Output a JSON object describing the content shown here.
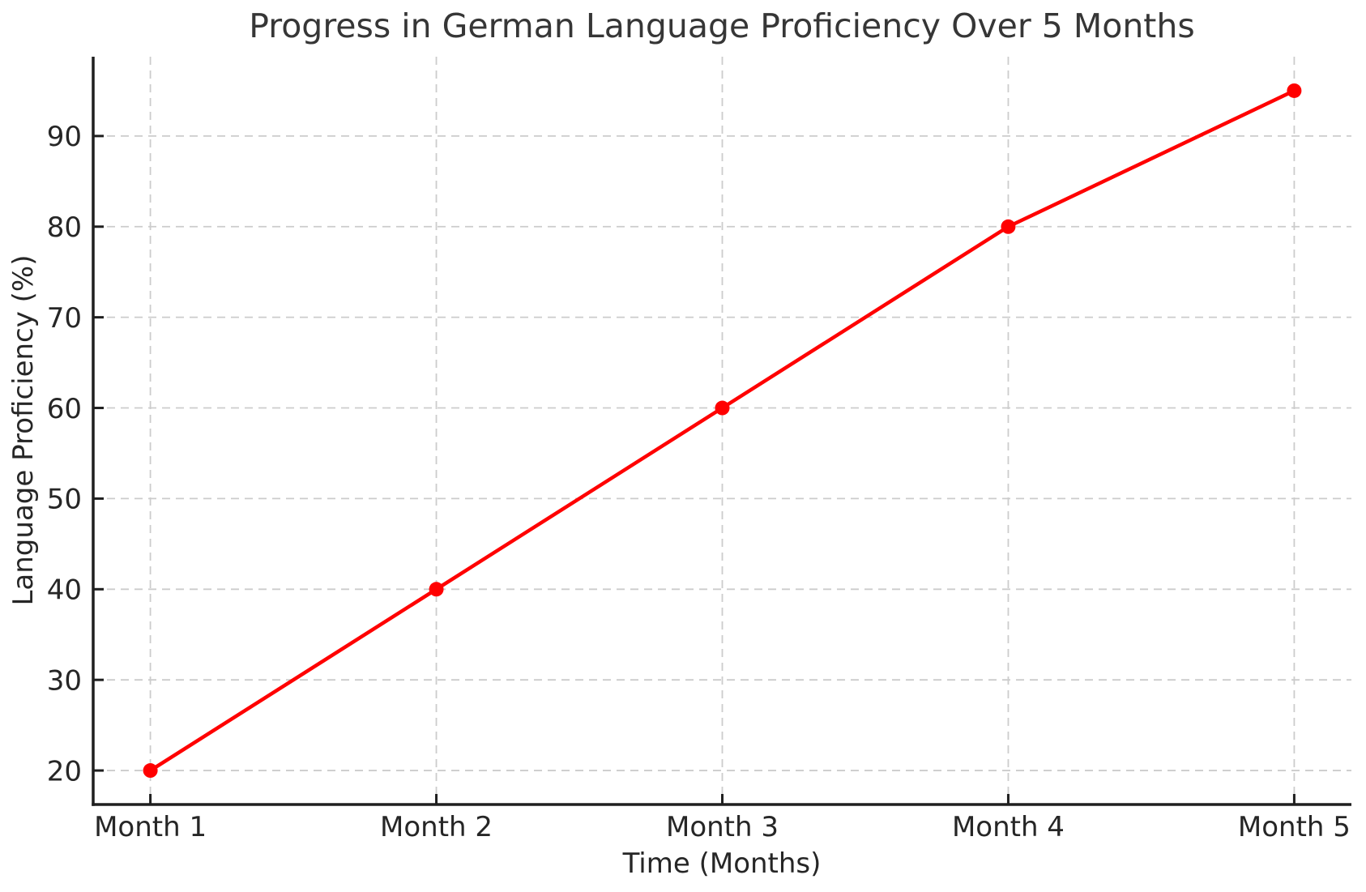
{
  "chart_data": {
    "type": "line",
    "title": "Progress in German Language Proficiency Over 5 Months",
    "xlabel": "Time (Months)",
    "ylabel": "Language Proficiency (%)",
    "categories": [
      "Month 1",
      "Month 2",
      "Month 3",
      "Month 4",
      "Month 5"
    ],
    "series": [
      {
        "name": "Language Proficiency",
        "values": [
          20,
          40,
          60,
          80,
          95
        ],
        "color": "#ff0000",
        "marker": "circle"
      }
    ],
    "y_ticks": [
      20,
      30,
      40,
      50,
      60,
      70,
      80,
      90
    ],
    "xlim": [
      -0.2,
      4.2
    ],
    "ylim": [
      16.25,
      98.75
    ],
    "grid": true,
    "grid_style": "dashed",
    "legend_position": "none",
    "colors": {
      "line": "#ff0000",
      "grid": "#cccccc",
      "spine": "#1f1f1f",
      "tick": "#1f1f1f",
      "text": "#262626",
      "title": "#363636",
      "background": "#ffffff"
    }
  }
}
